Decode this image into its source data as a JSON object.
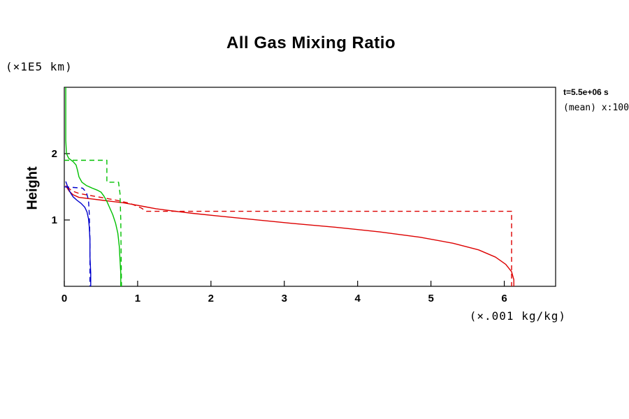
{
  "title": "All Gas Mixing Ratio",
  "annotations": {
    "line1": "t=5.5e+06 s",
    "line2": "(mean) x:100"
  },
  "axes": {
    "y_axis_label": "Height",
    "y_unit_label": "(×1E5 km)",
    "x_unit_label": "(×.001 kg/kg)",
    "x_ticks": [
      0,
      1,
      2,
      3,
      4,
      5,
      6
    ],
    "y_ticks": [
      1,
      2
    ],
    "xlim": [
      0,
      6.7
    ],
    "ylim": [
      0,
      3.0
    ]
  },
  "chart_data": {
    "type": "line",
    "title": "All Gas Mixing Ratio",
    "xlabel": "(×.001 kg/kg)",
    "ylabel": "Height (×1E5 km)",
    "xlim": [
      0,
      6.7
    ],
    "ylim": [
      0,
      3.0
    ],
    "grid": false,
    "legend": "none",
    "annotations": [
      "t=5.5e+06 s",
      "(mean) x:100"
    ],
    "series": [
      {
        "name": "red-solid",
        "color": "#dd0000",
        "style": "solid",
        "points": [
          [
            6.13,
            0
          ],
          [
            6.13,
            0.1
          ],
          [
            6.1,
            0.22
          ],
          [
            6.02,
            0.33
          ],
          [
            5.88,
            0.44
          ],
          [
            5.65,
            0.55
          ],
          [
            5.3,
            0.65
          ],
          [
            4.85,
            0.74
          ],
          [
            4.3,
            0.82
          ],
          [
            3.7,
            0.89
          ],
          [
            3.1,
            0.95
          ],
          [
            2.55,
            1.01
          ],
          [
            2.1,
            1.06
          ],
          [
            1.75,
            1.1
          ],
          [
            1.45,
            1.14
          ],
          [
            1.25,
            1.17
          ],
          [
            1.1,
            1.2
          ],
          [
            0.95,
            1.23
          ],
          [
            0.8,
            1.26
          ],
          [
            0.65,
            1.28
          ],
          [
            0.5,
            1.3
          ],
          [
            0.35,
            1.32
          ],
          [
            0.2,
            1.34
          ],
          [
            0.12,
            1.38
          ],
          [
            0.07,
            1.43
          ],
          [
            0.04,
            1.48
          ],
          [
            0.02,
            1.52
          ]
        ]
      },
      {
        "name": "red-dashed",
        "color": "#dd0000",
        "style": "dashed",
        "points": [
          [
            0.04,
            1.5
          ],
          [
            0.1,
            1.44
          ],
          [
            0.2,
            1.4
          ],
          [
            0.35,
            1.37
          ],
          [
            0.5,
            1.34
          ],
          [
            0.7,
            1.3
          ],
          [
            0.9,
            1.25
          ],
          [
            1.05,
            1.18
          ],
          [
            1.12,
            1.13
          ],
          [
            6.1,
            1.13
          ],
          [
            6.1,
            0
          ]
        ]
      },
      {
        "name": "green-solid",
        "color": "#00c000",
        "style": "solid",
        "points": [
          [
            0.02,
            3.0
          ],
          [
            0.02,
            2.2
          ],
          [
            0.03,
            2.0
          ],
          [
            0.06,
            1.93
          ],
          [
            0.12,
            1.88
          ],
          [
            0.16,
            1.83
          ],
          [
            0.18,
            1.75
          ],
          [
            0.2,
            1.65
          ],
          [
            0.24,
            1.57
          ],
          [
            0.3,
            1.52
          ],
          [
            0.38,
            1.48
          ],
          [
            0.45,
            1.45
          ],
          [
            0.5,
            1.42
          ],
          [
            0.54,
            1.36
          ],
          [
            0.58,
            1.28
          ],
          [
            0.62,
            1.18
          ],
          [
            0.66,
            1.08
          ],
          [
            0.7,
            0.95
          ],
          [
            0.73,
            0.8
          ],
          [
            0.75,
            0.6
          ],
          [
            0.76,
            0.4
          ],
          [
            0.77,
            0.2
          ],
          [
            0.77,
            0
          ]
        ]
      },
      {
        "name": "green-dashed",
        "color": "#00c000",
        "style": "dashed",
        "points": [
          [
            0.0,
            1.9
          ],
          [
            0.58,
            1.9
          ],
          [
            0.58,
            1.57
          ],
          [
            0.74,
            1.57
          ],
          [
            0.76,
            1.4
          ],
          [
            0.77,
            1.0
          ],
          [
            0.78,
            0
          ]
        ]
      },
      {
        "name": "blue-solid",
        "color": "#0000cc",
        "style": "solid",
        "points": [
          [
            0.02,
            1.58
          ],
          [
            0.04,
            1.52
          ],
          [
            0.06,
            1.46
          ],
          [
            0.09,
            1.4
          ],
          [
            0.12,
            1.35
          ],
          [
            0.17,
            1.3
          ],
          [
            0.23,
            1.25
          ],
          [
            0.28,
            1.19
          ],
          [
            0.31,
            1.12
          ],
          [
            0.33,
            1.02
          ],
          [
            0.34,
            0.9
          ],
          [
            0.35,
            0.7
          ],
          [
            0.35,
            0.45
          ],
          [
            0.36,
            0.2
          ],
          [
            0.36,
            0
          ]
        ]
      },
      {
        "name": "blue-dashed",
        "color": "#0000cc",
        "style": "dashed",
        "points": [
          [
            0.0,
            1.5
          ],
          [
            0.25,
            1.48
          ],
          [
            0.3,
            1.42
          ],
          [
            0.33,
            1.3
          ],
          [
            0.34,
            1.1
          ],
          [
            0.35,
            0.7
          ],
          [
            0.35,
            0
          ]
        ]
      }
    ]
  }
}
